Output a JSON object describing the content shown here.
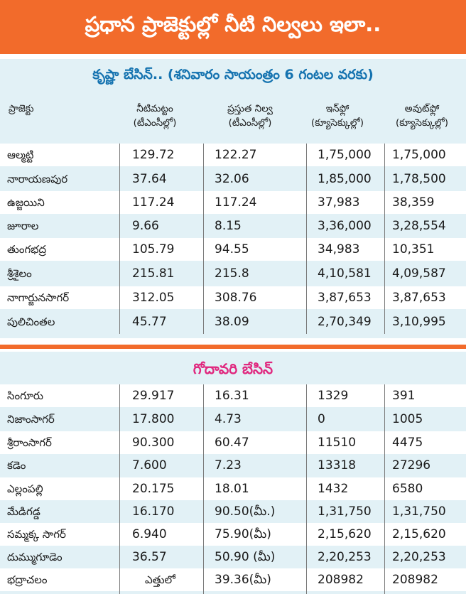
{
  "title": "ప్రధాన ప్రాజెక్టుల్లో నీటి నిల్వలు ఇలా..",
  "krishna": {
    "heading": "కృష్ణా బేసిన్.. (శనివారం సాయంత్రం 6 గంటల వరకు)",
    "headers": [
      {
        "line1": "ప్రాజెక్టు",
        "line2": ""
      },
      {
        "line1": "నీటిమట్టం",
        "line2": "(టీఎంసీల్లో)"
      },
      {
        "line1": "ప్రస్తుత నిల్వ",
        "line2": "(టీఎంసీల్లో)"
      },
      {
        "line1": "ఇన్‌ఫ్లో",
        "line2": "(క్యూసెక్కుల్లో)"
      },
      {
        "line1": "అవుట్‌ఫ్లో",
        "line2": "(క్యూసెక్కుల్లో)"
      }
    ],
    "rows": [
      [
        "ఆల్మట్టి",
        "129.72",
        "122.27",
        "1,75,000",
        "1,75,000"
      ],
      [
        "నారాయణపుర",
        "37.64",
        "32.06",
        "1,85,000",
        "1,78,500"
      ],
      [
        "ఉజ్జయిని",
        "117.24",
        "117.24",
        "37,983",
        "38,359"
      ],
      [
        "జూరాల",
        "9.66",
        "8.15",
        "3,36,000",
        "3,28,554"
      ],
      [
        "తుంగభద్ర",
        "105.79",
        "94.55",
        "34,983",
        "10,351"
      ],
      [
        "శ్రీశైలం",
        "215.81",
        "215.8",
        "4,10,581",
        "4,09,587"
      ],
      [
        "నాగార్జునసాగర్",
        "312.05",
        "308.76",
        "3,87,653",
        "3,87,653"
      ],
      [
        "పులిచింతల",
        "45.77",
        "38.09",
        "2,70,349",
        "3,10,995"
      ]
    ]
  },
  "godavari": {
    "heading": "గోదావరి బేసిన్",
    "rows": [
      [
        "సింగూరు",
        "29.917",
        "16.31",
        "1329",
        "391"
      ],
      [
        "నిజాంసాగర్",
        "17.800",
        "4.73",
        "0",
        "1005"
      ],
      [
        "శ్రీరాంసాగర్",
        "90.300",
        "60.47",
        "11510",
        "4475"
      ],
      [
        "కడెం",
        "7.600",
        "7.23",
        "13318",
        "27296"
      ],
      [
        "ఎల్లంపల్లి",
        "20.175",
        "18.01",
        "1432",
        "6580"
      ],
      [
        "మేడిగడ్డ",
        "16.170",
        "90.50(మీ.)",
        "1,31,750",
        "1,31,750"
      ],
      [
        "సమ్మక్క సాగర్",
        "6.940",
        "75.90(మీ)",
        "2,15,620",
        "2,15,620"
      ],
      [
        "దుమ్ముగూడెం",
        "36.57",
        "50.90 (మీ)",
        "2,20,253",
        "2,20,253"
      ],
      [
        "భద్రాచలం",
        "ఎత్తులో",
        "39.36(మీ)",
        "208982",
        "208982"
      ]
    ]
  },
  "colors": {
    "title_bg": "#f26b2b",
    "section_bg": "#e2f1f6",
    "krishna_heading": "#1573b0",
    "godavari_heading": "#e0277e"
  }
}
